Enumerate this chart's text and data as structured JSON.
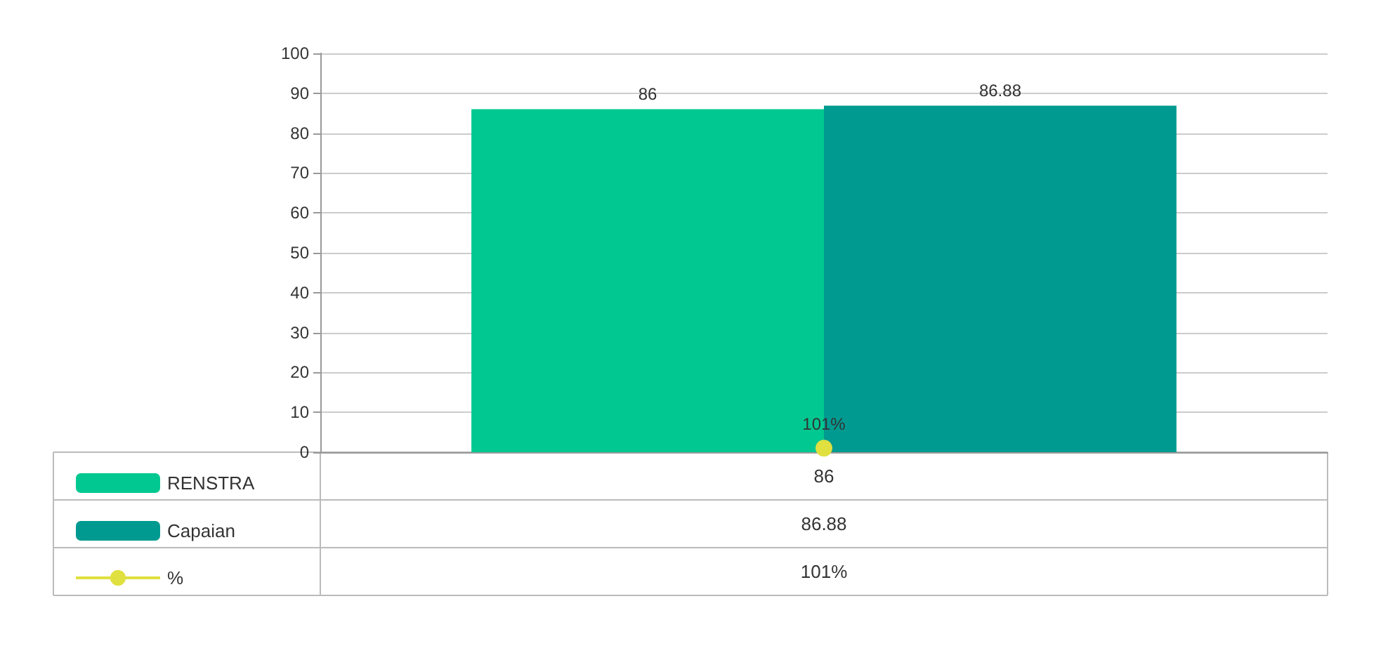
{
  "chart_data": {
    "type": "bar",
    "categories": [
      null
    ],
    "series": [
      {
        "name": "RENSTRA",
        "color": "#00c890",
        "values": [
          86
        ],
        "value_labels": [
          "86"
        ]
      },
      {
        "name": "Capaian",
        "color": "#009a90",
        "values": [
          86.88
        ],
        "value_labels": [
          "86.88"
        ]
      },
      {
        "name": "%",
        "type": "line",
        "color": "#e0e040",
        "values": [
          1.01
        ],
        "value_labels": [
          "101%"
        ],
        "marker": "circle"
      }
    ],
    "ylim": [
      0,
      100
    ],
    "yticks": [
      0,
      10,
      20,
      30,
      40,
      50,
      60,
      70,
      80,
      90,
      100
    ],
    "grid": "y",
    "legend": "bottom left"
  }
}
